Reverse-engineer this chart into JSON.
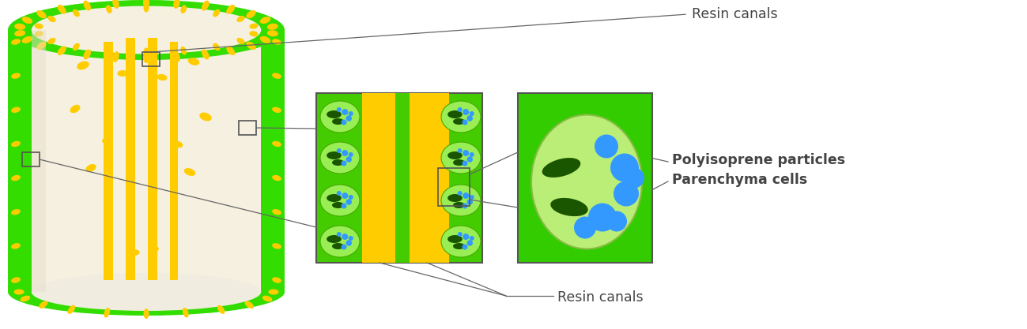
{
  "bg_color": "#ffffff",
  "green_bright": "#33dd00",
  "green_mid": "#44cc00",
  "yellow": "#ffcc00",
  "cream": "#f5f0e0",
  "cream2": "#f0ece0",
  "blue_particle": "#3399ff",
  "dark_green": "#1a5500",
  "cell_light_green": "#99ee55",
  "cell_border": "#44aa00",
  "panel_green": "#44cc00",
  "panel2_green": "#33cc00",
  "big_cell_light": "#bbee66",
  "big_cell_border": "#77aa44",
  "line_color": "#666666",
  "label_color": "#444444",
  "resin_canal_label_top": "Resin canals",
  "resin_canal_label_bot": "Resin canals",
  "polyisoprene_label": "Polyisoprene particles",
  "parenchyma_label": "Parenchyma cells",
  "figsize": [
    12.99,
    4.17
  ],
  "dpi": 100
}
